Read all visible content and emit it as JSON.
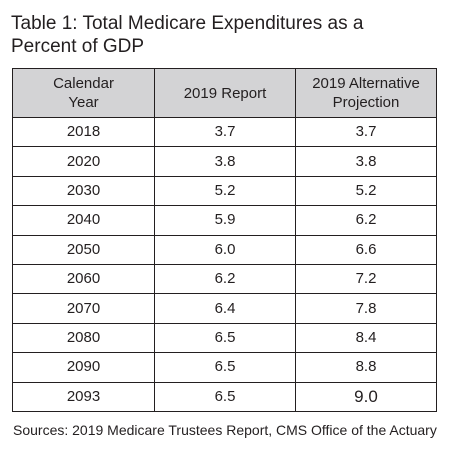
{
  "title": {
    "line1": "Table 1: Total Medicare Expenditures as a",
    "line2": "Percent of GDP"
  },
  "table": {
    "headers": [
      [
        "Calendar",
        "Year"
      ],
      [
        "2019 Report"
      ],
      [
        "2019 Alternative",
        "Projection"
      ]
    ],
    "rows": [
      [
        "2018",
        "3.7",
        "3.7"
      ],
      [
        "2020",
        "3.8",
        "3.8"
      ],
      [
        "2030",
        "5.2",
        "5.2"
      ],
      [
        "2040",
        "5.9",
        "6.2"
      ],
      [
        "2050",
        "6.0",
        "6.6"
      ],
      [
        "2060",
        "6.2",
        "7.2"
      ],
      [
        "2070",
        "6.4",
        "7.8"
      ],
      [
        "2080",
        "6.5",
        "8.4"
      ],
      [
        "2090",
        "6.5",
        "8.8"
      ],
      [
        "2093",
        "6.5",
        "9.0"
      ]
    ]
  },
  "source": "Sources: 2019 Medicare Trustees Report, CMS Office of the Actuary",
  "colors": {
    "header_bg": "#d3d3d5",
    "text": "#231f20",
    "border": "#231f20"
  }
}
